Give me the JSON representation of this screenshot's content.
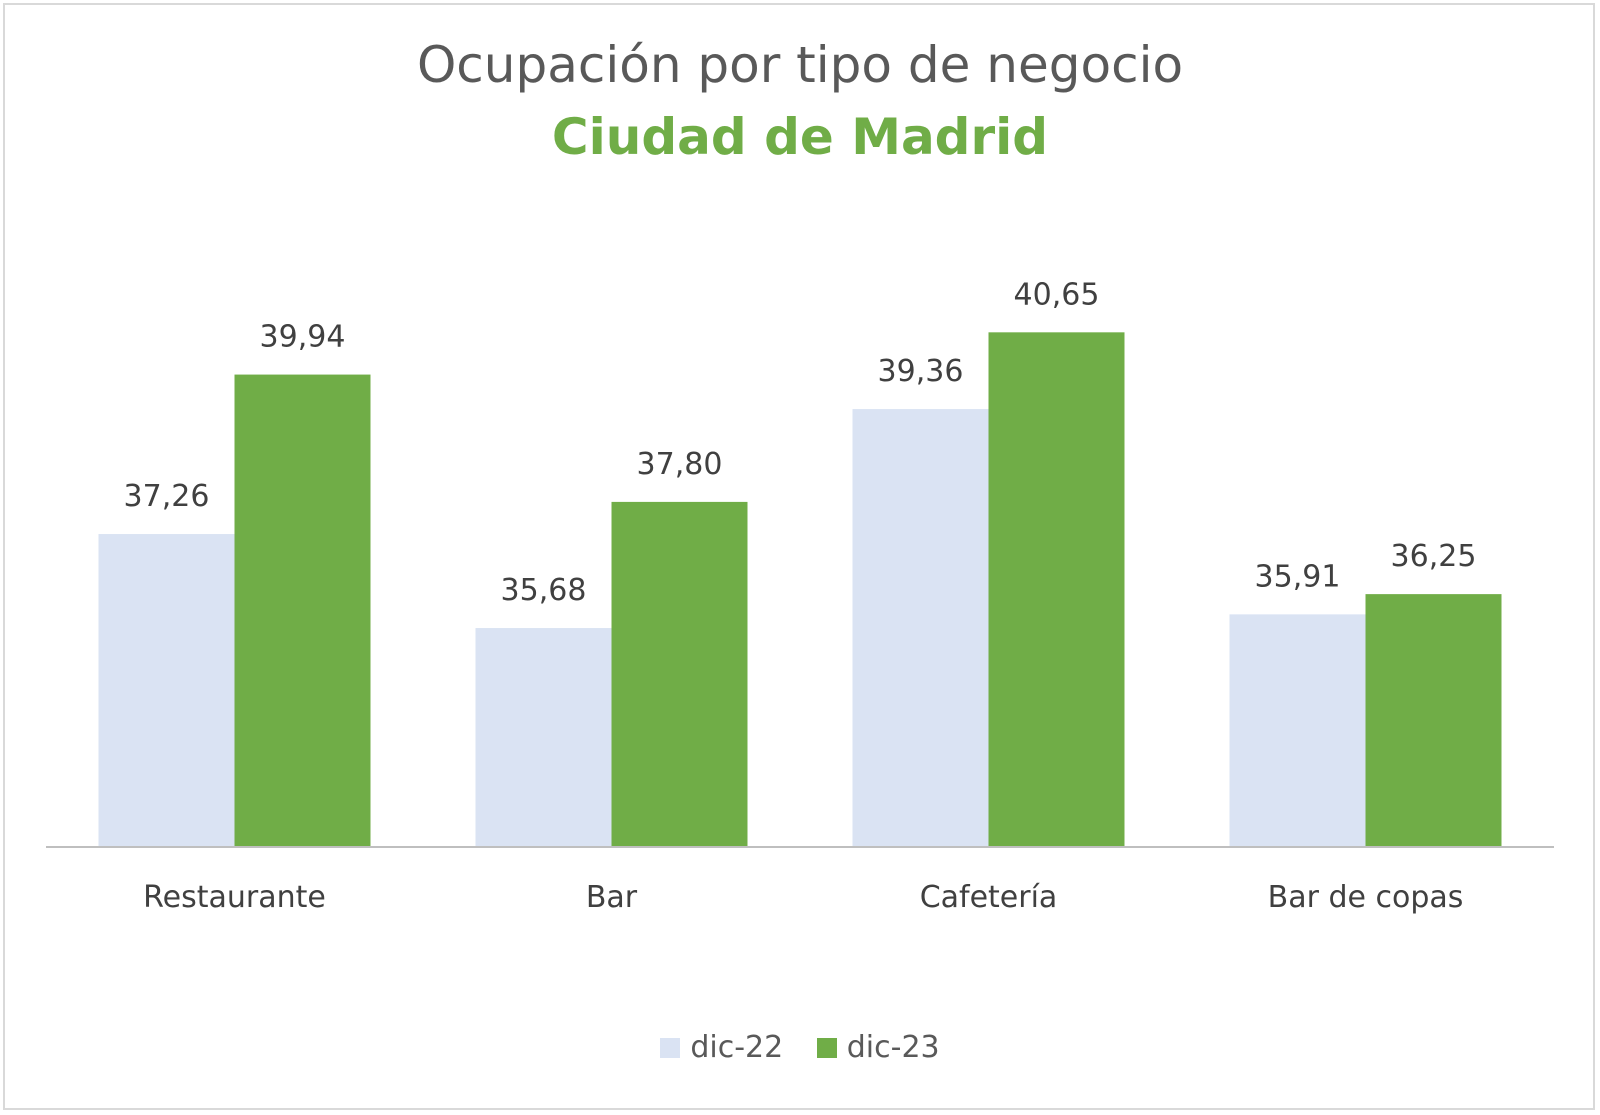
{
  "chart_data": {
    "type": "bar",
    "title": "Ocupación por tipo de negocio",
    "subtitle": "Ciudad de Madrid",
    "categories": [
      "Restaurante",
      "Bar",
      "Cafetería",
      "Bar de copas"
    ],
    "series": [
      {
        "name": "dic-22",
        "values": [
          37.26,
          35.68,
          39.36,
          35.91
        ],
        "labels": [
          "37,26",
          "35,68",
          "39,36",
          "35,91"
        ],
        "color": "#dae3f3"
      },
      {
        "name": "dic-23",
        "values": [
          39.94,
          37.8,
          40.65,
          36.25
        ],
        "labels": [
          "39,94",
          "37,80",
          "40,65",
          "36,25"
        ],
        "color": "#70ad47"
      }
    ],
    "ylim": [
      32,
      42
    ],
    "grid": false,
    "legend": "bottom",
    "title_color": "#595959",
    "subtitle_color": "#70ad47"
  }
}
